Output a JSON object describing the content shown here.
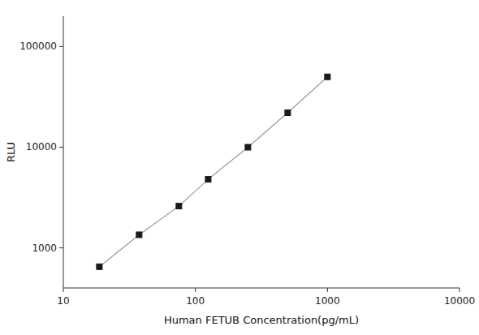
{
  "chart_data": {
    "type": "line",
    "x": [
      18.75,
      37.5,
      75,
      125,
      250,
      500,
      1000
    ],
    "values": [
      650,
      1350,
      2600,
      4800,
      10000,
      22000,
      50000
    ],
    "xlabel": "Human FETUB Concentration(pg/mL)",
    "ylabel": "RLU",
    "xlim": [
      10,
      10000
    ],
    "ylim": [
      400,
      200000
    ],
    "xticks": [
      10,
      100,
      1000,
      10000
    ],
    "yticks": [
      1000,
      10000,
      100000
    ],
    "log": true,
    "grid": false,
    "marker": "square",
    "color": "#1a1a1a"
  }
}
